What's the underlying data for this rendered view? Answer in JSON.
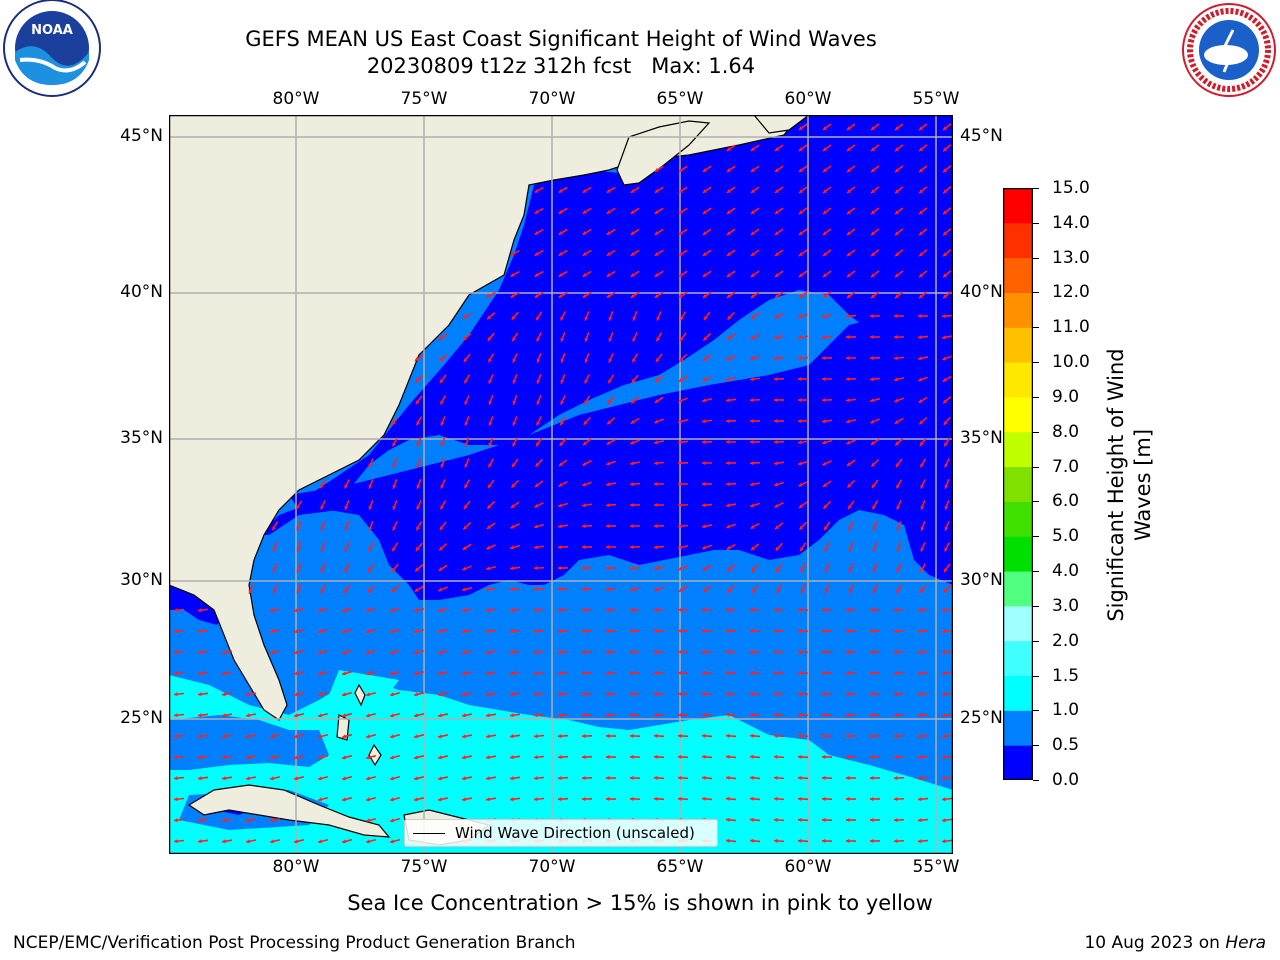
{
  "title": {
    "line1": "GEFS MEAN US East Coast Significant Height of Wind Waves",
    "line2": "20230809 t12z 312h fcst   Max: 1.64"
  },
  "logos": {
    "left": {
      "name": "noaa-logo",
      "text": "NOAA",
      "ring_text": "NATIONAL OCEANIC AND ATMOSPHERIC ADMINISTRATION · U.S. DEPARTMENT OF COMMERCE"
    },
    "right": {
      "name": "nws-logo",
      "ring_text": "NATIONAL WEATHER SERVICE"
    }
  },
  "map": {
    "lon_ticks": [
      {
        "value": -80,
        "label": "80°W"
      },
      {
        "value": -75,
        "label": "75°W"
      },
      {
        "value": -70,
        "label": "70°W"
      },
      {
        "value": -65,
        "label": "65°W"
      },
      {
        "value": -60,
        "label": "60°W"
      },
      {
        "value": -55,
        "label": "55°W"
      }
    ],
    "lat_ticks": [
      {
        "value": 45,
        "label": "45°N"
      },
      {
        "value": 40,
        "label": "40°N"
      },
      {
        "value": 35,
        "label": "35°N"
      },
      {
        "value": 30,
        "label": "30°N"
      },
      {
        "value": 25,
        "label": "25°N"
      }
    ],
    "land_color": "#efedde",
    "grid_color": "#b0b0b0",
    "arrow_color": "#ff2020",
    "legend": {
      "label": "Wind Wave Direction (unscaled)"
    }
  },
  "colorbar": {
    "title_line1": "Significant Height of Wind",
    "title_line2": "Waves [m]",
    "levels": [
      "0.0",
      "0.5",
      "1.0",
      "1.5",
      "2.0",
      "3.0",
      "4.0",
      "5.0",
      "6.0",
      "7.0",
      "8.0",
      "9.0",
      "10.0",
      "11.0",
      "12.0",
      "13.0",
      "14.0",
      "15.0"
    ],
    "colors": [
      "#0000ff",
      "#0080ff",
      "#00ffff",
      "#40ffff",
      "#a0ffff",
      "#50ff80",
      "#00e000",
      "#40e000",
      "#80e000",
      "#c0ff00",
      "#ffff00",
      "#ffe800",
      "#ffc000",
      "#ff9000",
      "#ff6000",
      "#ff3000",
      "#ff0000"
    ]
  },
  "footer": {
    "note": "Sea Ice Concentration > 15% is shown in pink to yellow",
    "credit": "NCEP/EMC/Verification Post Processing Product Generation Branch",
    "date": "10 Aug 2023 on ",
    "machine": "Hera"
  }
}
